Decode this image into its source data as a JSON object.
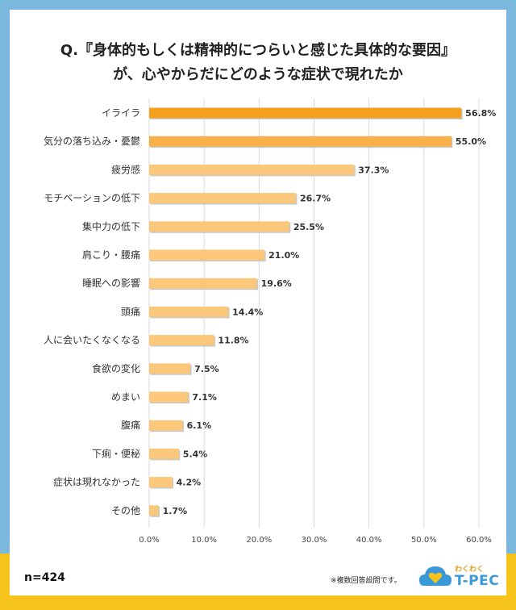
{
  "title_lines": [
    "Q.『身体的もしくは精神的につらいと感じた具体的な要因』",
    "が、心やからだにどのような症状で現れたか"
  ],
  "sample": "n=424",
  "note": "※複数回答設問です。",
  "logo": {
    "top_text": "わくわく",
    "main_text": "T-PEC",
    "icon": "cloud-heart-icon"
  },
  "colors": {
    "background_blue": "#7ab8dd",
    "band_yellow": "#f6c31d",
    "bar_top": "#f5a01c",
    "bar_mid": "#f7b04a",
    "bar_light": "#fbc77a"
  },
  "chart_data": {
    "type": "bar",
    "orientation": "horizontal",
    "categories": [
      "イライラ",
      "気分の落ち込み・憂鬱",
      "疲労感",
      "モチベーションの低下",
      "集中力の低下",
      "肩こり・腰痛",
      "睡眠への影響",
      "頭痛",
      "人に会いたくなくなる",
      "食欲の変化",
      "めまい",
      "腹痛",
      "下痢・便秘",
      "症状は現れなかった",
      "その他"
    ],
    "values": [
      56.8,
      55.0,
      37.3,
      26.7,
      25.5,
      21.0,
      19.6,
      14.4,
      11.8,
      7.5,
      7.1,
      6.1,
      5.4,
      4.2,
      1.7
    ],
    "value_labels": [
      "56.8%",
      "55.0%",
      "37.3%",
      "26.7%",
      "25.5%",
      "21.0%",
      "19.6%",
      "14.4%",
      "11.8%",
      "7.5%",
      "7.1%",
      "6.1%",
      "5.4%",
      "4.2%",
      "1.7%"
    ],
    "x_ticks": [
      "0.0%",
      "10.0%",
      "20.0%",
      "30.0%",
      "40.0%",
      "50.0%",
      "60.0%"
    ],
    "xlim": [
      0,
      60
    ],
    "grid": true,
    "legend": "none"
  }
}
